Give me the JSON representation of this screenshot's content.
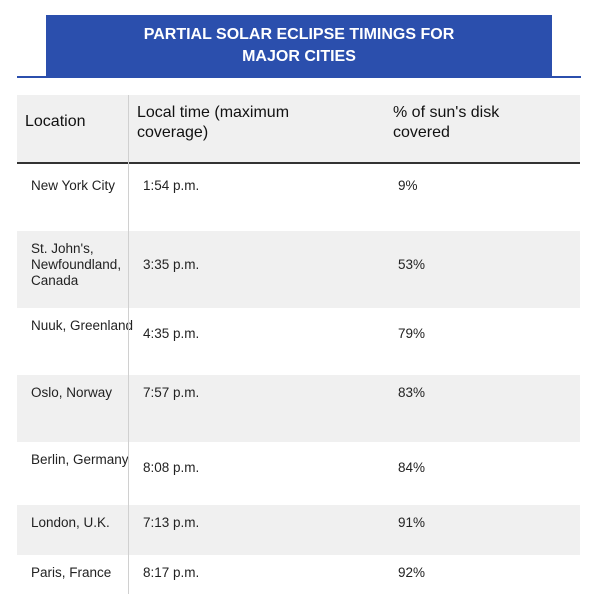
{
  "header": {
    "title_line1": "PARTIAL SOLAR ECLIPSE TIMINGS FOR",
    "title_line2": "MAJOR CITIES"
  },
  "table": {
    "columns": {
      "location": "Location",
      "time": "Local time (maximum coverage)",
      "percent": "% of sun's disk covered"
    },
    "rows": [
      {
        "location": "New York City",
        "time": "1:54 p.m.",
        "percent": "9%"
      },
      {
        "location": "St. John's, Newfoundland, Canada",
        "time": "3:35 p.m.",
        "percent": "53%"
      },
      {
        "location": "Nuuk, Greenland",
        "time": "4:35 p.m.",
        "percent": "79%"
      },
      {
        "location": "Oslo, Norway",
        "time": "7:57 p.m.",
        "percent": "83%"
      },
      {
        "location": "Berlin, Germany",
        "time": "8:08 p.m.",
        "percent": "84%"
      },
      {
        "location": "London, U.K.",
        "time": "7:13 p.m.",
        "percent": "91%"
      },
      {
        "location": "Paris, France",
        "time": "8:17 p.m.",
        "percent": "92%"
      }
    ]
  }
}
